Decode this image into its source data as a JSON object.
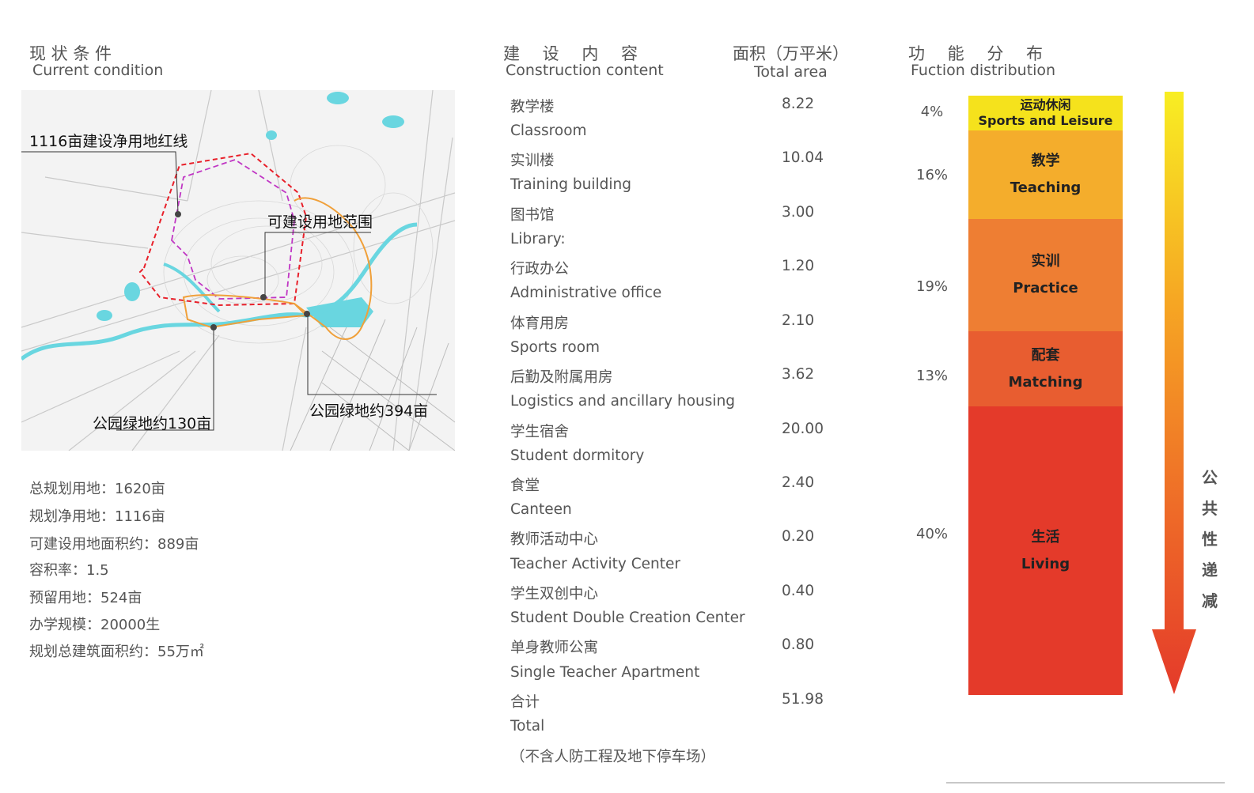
{
  "current": {
    "title_cn": "现 状 条 件",
    "title_en": "Current condition",
    "map_labels": {
      "net_land": "1116亩建设净用地红线",
      "buildable": "可建设用地范围",
      "park130": "公园绿地约130亩",
      "park394": "公园绿地约394亩"
    },
    "stats": [
      "总规划用地：1620亩",
      "规划净用地：1116亩",
      "可建设用地面积约：889亩",
      "容积率：1.5",
      "预留用地：524亩",
      "办学规模：20000生",
      "规划总建筑面积约：55万㎡"
    ]
  },
  "construction": {
    "title_cn": "建 设 内 容",
    "title_en": "Construction  content",
    "area_title_cn": "面积（万平米）",
    "area_title_en": "Total area",
    "rows": [
      {
        "cn": "教学楼",
        "en": "Classroom",
        "value": "8.22"
      },
      {
        "cn": "实训楼",
        "en": "Training building",
        "value": "10.04"
      },
      {
        "cn": "图书馆",
        "en": "Library:",
        "value": "3.00"
      },
      {
        "cn": "行政办公",
        "en": "Administrative office",
        "value": "1.20"
      },
      {
        "cn": "体育用房",
        "en": "Sports room",
        "value": "2.10"
      },
      {
        "cn": "后勤及附属用房",
        "en": "Logistics and ancillary housing",
        "value": "3.62"
      },
      {
        "cn": "学生宿舍",
        "en": "Student dormitory",
        "value": "20.00"
      },
      {
        "cn": "食堂",
        "en": "Canteen",
        "value": "2.40"
      },
      {
        "cn": "教师活动中心",
        "en": "Teacher Activity Center",
        "value": "0.20"
      },
      {
        "cn": "学生双创中心",
        "en": "Student Double Creation Center",
        "value": "0.40"
      },
      {
        "cn": "单身教师公寓",
        "en": "Single Teacher Apartment",
        "value": "0.80"
      },
      {
        "cn": "合计",
        "en": "Total",
        "value": "51.98"
      }
    ],
    "note": "（不含人防工程及地下停车场）"
  },
  "function": {
    "title_cn": "功 能 分 布",
    "title_en": "Fuction distribution",
    "segments": [
      {
        "cn": "运动休闲",
        "en": "Sports and Leisure",
        "pct": "4%",
        "color": "#f5e21c"
      },
      {
        "cn": "教学",
        "en": "Teaching",
        "pct": "16%",
        "color": "#f4ad2c"
      },
      {
        "cn": "实训",
        "en": "Practice",
        "pct": "19%",
        "color": "#ee7e33"
      },
      {
        "cn": "配套",
        "en": "Matching",
        "pct": "13%",
        "color": "#e85d30"
      },
      {
        "cn": "生活",
        "en": "Living",
        "pct": "40%",
        "color": "#e43a2a"
      }
    ],
    "arrow_label": [
      "公",
      "共",
      "性",
      "递",
      "减"
    ]
  }
}
